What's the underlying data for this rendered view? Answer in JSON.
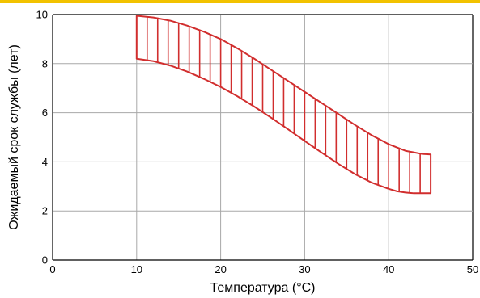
{
  "colors": {
    "accent_stripe": "#F2C200",
    "band": "#D12E2E",
    "grid": "#A8A8A8",
    "axis": "#000000"
  },
  "chart_data": {
    "type": "area",
    "title": "",
    "xlabel": "Температура (°C)",
    "ylabel": "Ожидаемый срок службы (лет)",
    "xlim": [
      0,
      50
    ],
    "ylim": [
      0,
      10
    ],
    "xticks": [
      0,
      10,
      20,
      30,
      40,
      50
    ],
    "yticks": [
      0,
      2,
      4,
      6,
      8,
      10
    ],
    "xtick_labels": [
      "0",
      "10",
      "20",
      "30",
      "40",
      "50"
    ],
    "ytick_labels": [
      "0",
      "2",
      "4",
      "6",
      "8",
      "10"
    ],
    "grid": true,
    "legend": "none",
    "fill_pattern": "vertical hatch",
    "series": [
      {
        "role": "upper",
        "x": [
          10,
          12,
          14,
          16,
          18,
          20,
          22,
          24,
          26,
          28,
          30,
          32,
          34,
          36,
          38,
          40,
          42,
          44,
          45
        ],
        "y": [
          9.95,
          9.88,
          9.75,
          9.55,
          9.3,
          9.0,
          8.62,
          8.2,
          7.75,
          7.3,
          6.85,
          6.4,
          5.95,
          5.5,
          5.08,
          4.72,
          4.45,
          4.32,
          4.3
        ]
      },
      {
        "role": "lower",
        "x": [
          10,
          12,
          14,
          16,
          18,
          20,
          22,
          24,
          26,
          28,
          30,
          32,
          34,
          36,
          38,
          40,
          41,
          42,
          43,
          44,
          45
        ],
        "y": [
          8.2,
          8.1,
          7.92,
          7.68,
          7.38,
          7.05,
          6.67,
          6.25,
          5.8,
          5.33,
          4.85,
          4.38,
          3.92,
          3.5,
          3.15,
          2.9,
          2.8,
          2.75,
          2.72,
          2.72,
          2.72
        ]
      }
    ]
  }
}
